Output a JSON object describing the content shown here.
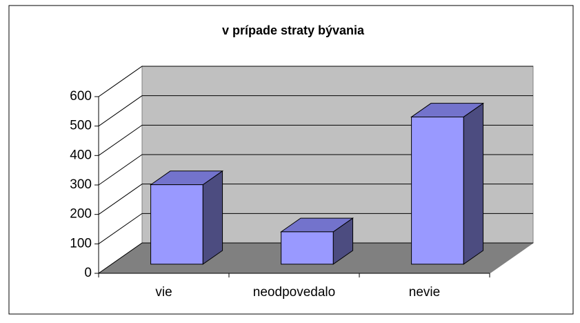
{
  "chart_data": {
    "type": "bar",
    "title": "v prípade straty bývania",
    "categories": [
      "vie",
      "neodpovedalo",
      "nevie"
    ],
    "values": [
      270,
      110,
      500
    ],
    "color": "#9999ff",
    "ylim": [
      0,
      600
    ],
    "yticks": [
      0,
      100,
      200,
      300,
      400,
      500,
      600
    ],
    "grid": true
  }
}
